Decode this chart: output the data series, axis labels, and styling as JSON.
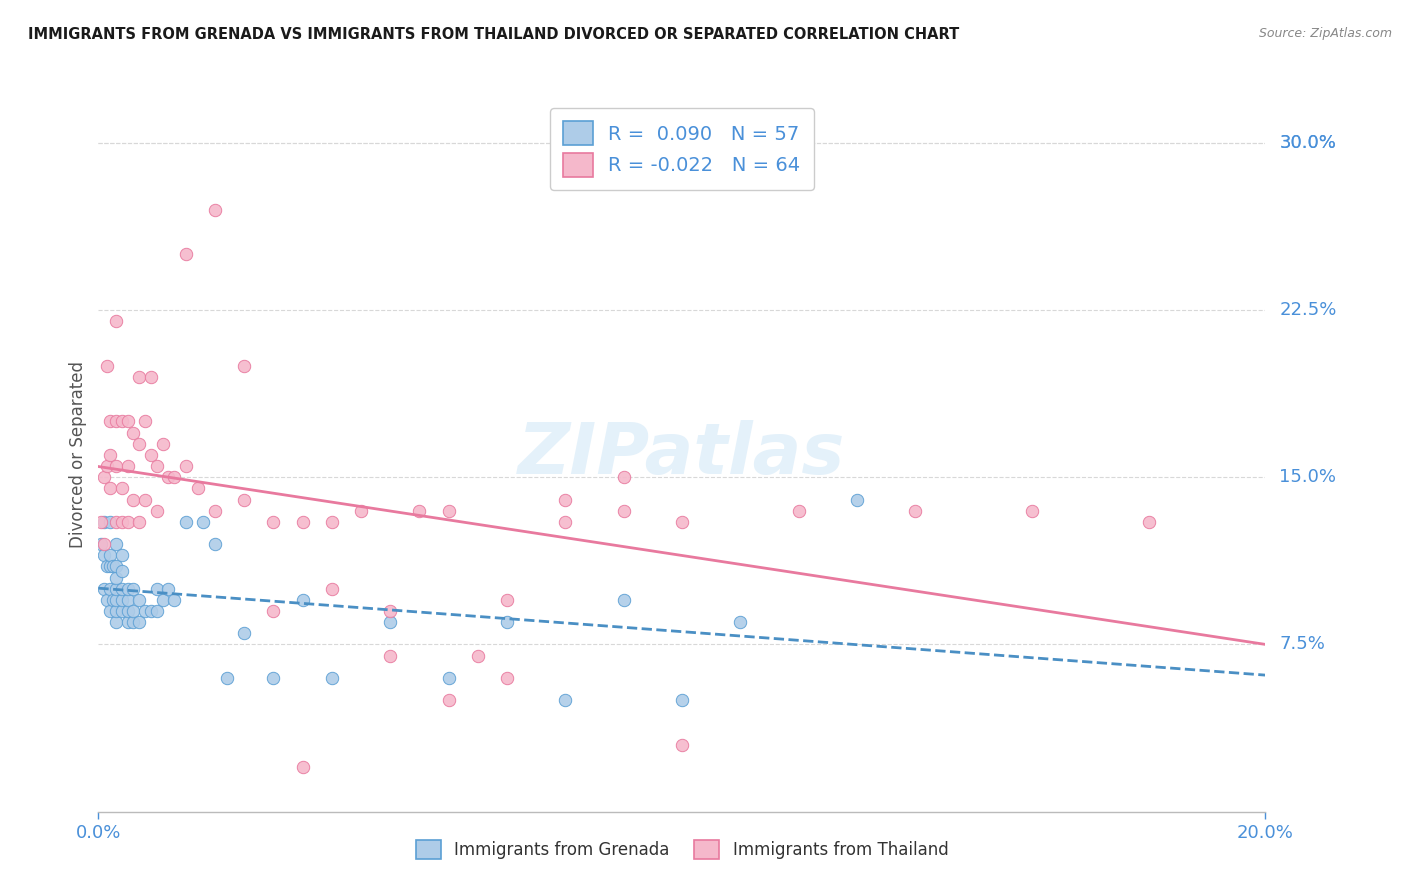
{
  "title": "IMMIGRANTS FROM GRENADA VS IMMIGRANTS FROM THAILAND DIVORCED OR SEPARATED CORRELATION CHART",
  "source": "Source: ZipAtlas.com",
  "ylabel": "Divorced or Separated",
  "right_ytick_vals": [
    0.075,
    0.15,
    0.225,
    0.3
  ],
  "right_ytick_labels": [
    "7.5%",
    "15.0%",
    "22.5%",
    "30.0%"
  ],
  "xlim": [
    0.0,
    0.2
  ],
  "ylim": [
    0.0,
    0.32
  ],
  "legend1_R": " 0.090",
  "legend1_N": "57",
  "legend2_R": "-0.022",
  "legend2_N": "64",
  "grenada_color": "#aecce8",
  "thailand_color": "#f5b8cb",
  "grenada_edge_color": "#5b9fd4",
  "thailand_edge_color": "#e8799e",
  "grenada_line_color": "#4a8fc4",
  "thailand_line_color": "#e8799e",
  "watermark_color": "#d6eaf8",
  "grid_color": "#d8d8d8",
  "blue_label_color": "#4a90d9",
  "grenada_x": [
    0.0005,
    0.001,
    0.001,
    0.001,
    0.0015,
    0.0015,
    0.002,
    0.002,
    0.002,
    0.002,
    0.002,
    0.0025,
    0.0025,
    0.003,
    0.003,
    0.003,
    0.003,
    0.003,
    0.003,
    0.003,
    0.004,
    0.004,
    0.004,
    0.004,
    0.004,
    0.005,
    0.005,
    0.005,
    0.005,
    0.006,
    0.006,
    0.006,
    0.007,
    0.007,
    0.008,
    0.009,
    0.01,
    0.01,
    0.011,
    0.012,
    0.013,
    0.015,
    0.018,
    0.02,
    0.022,
    0.025,
    0.03,
    0.035,
    0.04,
    0.05,
    0.06,
    0.07,
    0.08,
    0.09,
    0.1,
    0.11,
    0.13
  ],
  "grenada_y": [
    0.12,
    0.1,
    0.115,
    0.13,
    0.095,
    0.11,
    0.09,
    0.1,
    0.11,
    0.115,
    0.13,
    0.095,
    0.11,
    0.085,
    0.09,
    0.095,
    0.1,
    0.105,
    0.11,
    0.12,
    0.09,
    0.095,
    0.1,
    0.108,
    0.115,
    0.085,
    0.09,
    0.095,
    0.1,
    0.085,
    0.09,
    0.1,
    0.085,
    0.095,
    0.09,
    0.09,
    0.09,
    0.1,
    0.095,
    0.1,
    0.095,
    0.13,
    0.13,
    0.12,
    0.06,
    0.08,
    0.06,
    0.095,
    0.06,
    0.085,
    0.06,
    0.085,
    0.05,
    0.095,
    0.05,
    0.085,
    0.14
  ],
  "thailand_x": [
    0.0005,
    0.001,
    0.001,
    0.0015,
    0.0015,
    0.002,
    0.002,
    0.002,
    0.003,
    0.003,
    0.003,
    0.003,
    0.004,
    0.004,
    0.004,
    0.005,
    0.005,
    0.005,
    0.006,
    0.006,
    0.007,
    0.007,
    0.007,
    0.008,
    0.008,
    0.009,
    0.009,
    0.01,
    0.01,
    0.011,
    0.012,
    0.013,
    0.015,
    0.017,
    0.02,
    0.025,
    0.03,
    0.035,
    0.04,
    0.045,
    0.05,
    0.055,
    0.06,
    0.07,
    0.08,
    0.09,
    0.1,
    0.12,
    0.14,
    0.16,
    0.18,
    0.035,
    0.05,
    0.065,
    0.08,
    0.1,
    0.015,
    0.02,
    0.03,
    0.06,
    0.04,
    0.07,
    0.025,
    0.09
  ],
  "thailand_y": [
    0.13,
    0.12,
    0.15,
    0.155,
    0.2,
    0.145,
    0.16,
    0.175,
    0.13,
    0.155,
    0.175,
    0.22,
    0.13,
    0.145,
    0.175,
    0.13,
    0.155,
    0.175,
    0.14,
    0.17,
    0.13,
    0.165,
    0.195,
    0.14,
    0.175,
    0.16,
    0.195,
    0.135,
    0.155,
    0.165,
    0.15,
    0.15,
    0.155,
    0.145,
    0.135,
    0.14,
    0.13,
    0.13,
    0.13,
    0.135,
    0.09,
    0.135,
    0.135,
    0.095,
    0.13,
    0.135,
    0.13,
    0.135,
    0.135,
    0.135,
    0.13,
    0.02,
    0.07,
    0.07,
    0.14,
    0.03,
    0.25,
    0.27,
    0.09,
    0.05,
    0.1,
    0.06,
    0.2,
    0.15
  ]
}
